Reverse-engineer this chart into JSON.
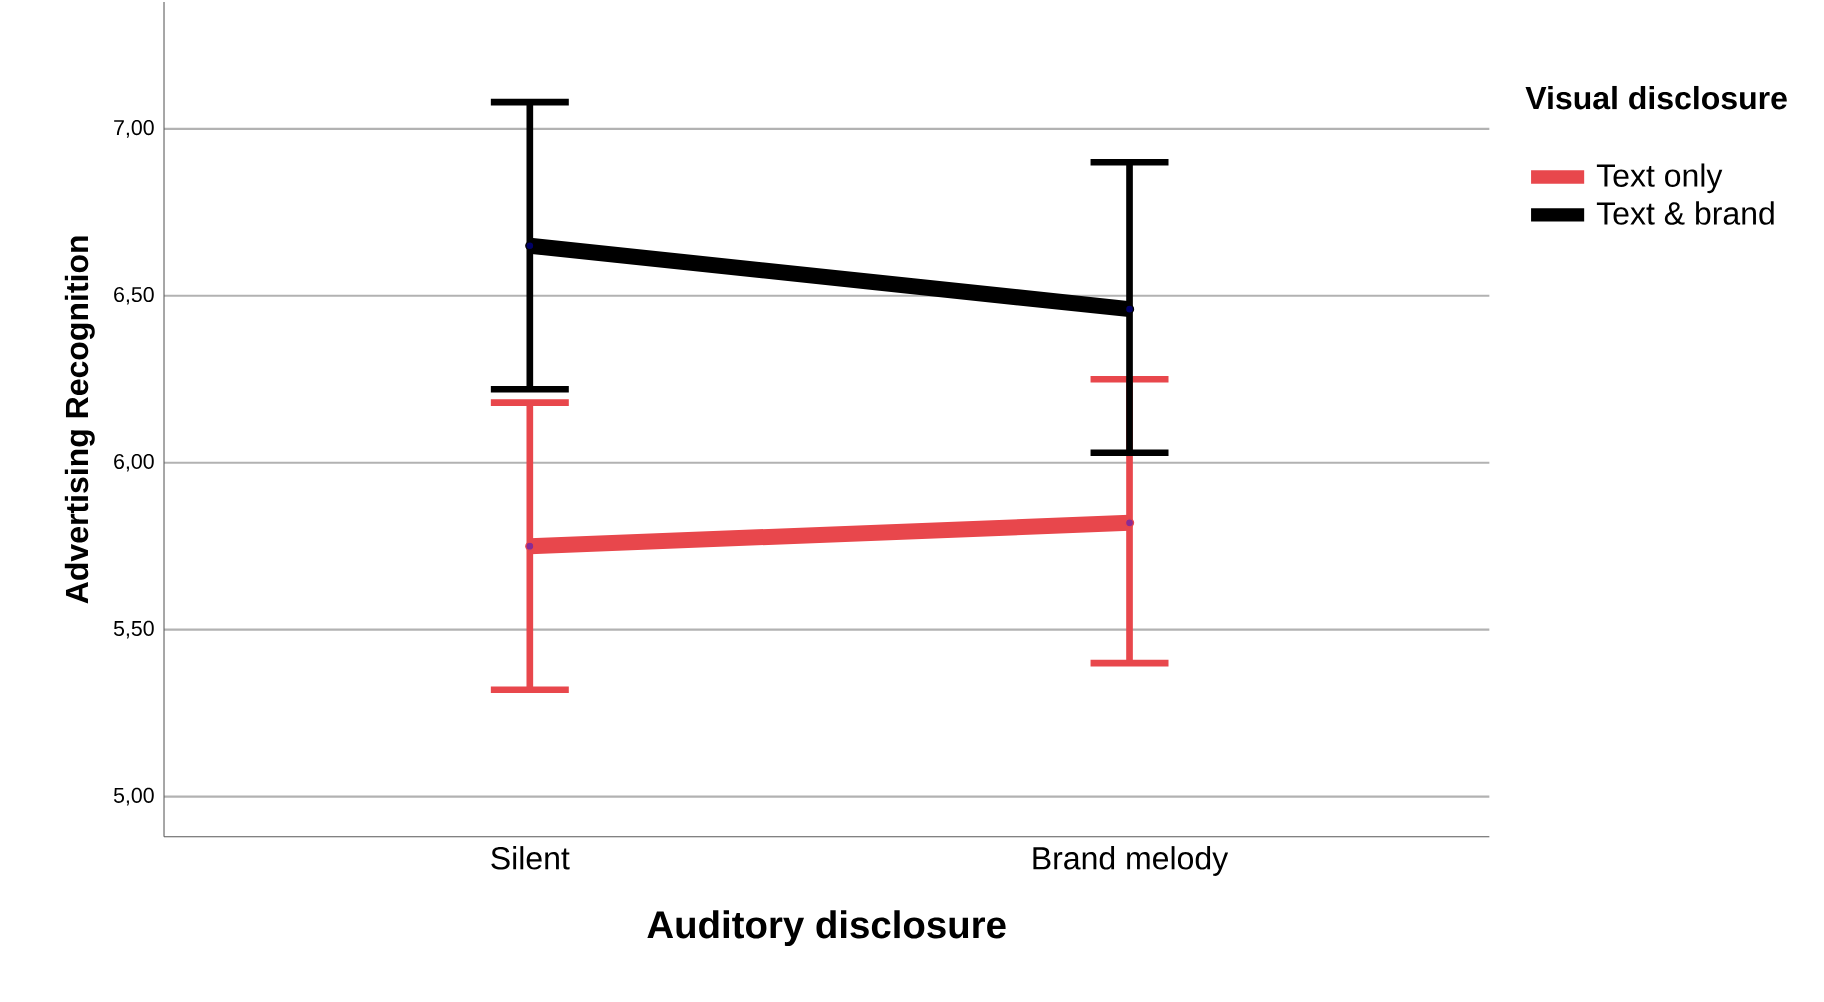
{
  "chart_data": {
    "type": "line",
    "xlabel": "Auditory disclosure",
    "ylabel": "Advertising Recognition",
    "legend_title": "Visual disclosure",
    "categories": [
      "Silent",
      "Brand melody"
    ],
    "series": [
      {
        "name": "Text only",
        "color": "#e8474c",
        "values": [
          5.75,
          5.82
        ],
        "errors": [
          [
            5.32,
            6.18
          ],
          [
            5.4,
            6.25
          ]
        ]
      },
      {
        "name": "Text & brand",
        "color": "#000000",
        "values": [
          6.65,
          6.46
        ],
        "errors": [
          [
            6.22,
            7.08
          ],
          [
            6.03,
            6.9
          ]
        ]
      }
    ],
    "ylim": [
      4.88,
      7.38
    ],
    "yticks": [
      {
        "value": 5,
        "label": "5,00"
      },
      {
        "value": 5.5,
        "label": "5,50"
      },
      {
        "value": 6,
        "label": "6,00"
      },
      {
        "value": 6.5,
        "label": "6,50"
      },
      {
        "value": 7,
        "label": "7,00"
      }
    ],
    "grid": "y",
    "legend": "right",
    "marker": "circle",
    "line_style": "solid"
  }
}
